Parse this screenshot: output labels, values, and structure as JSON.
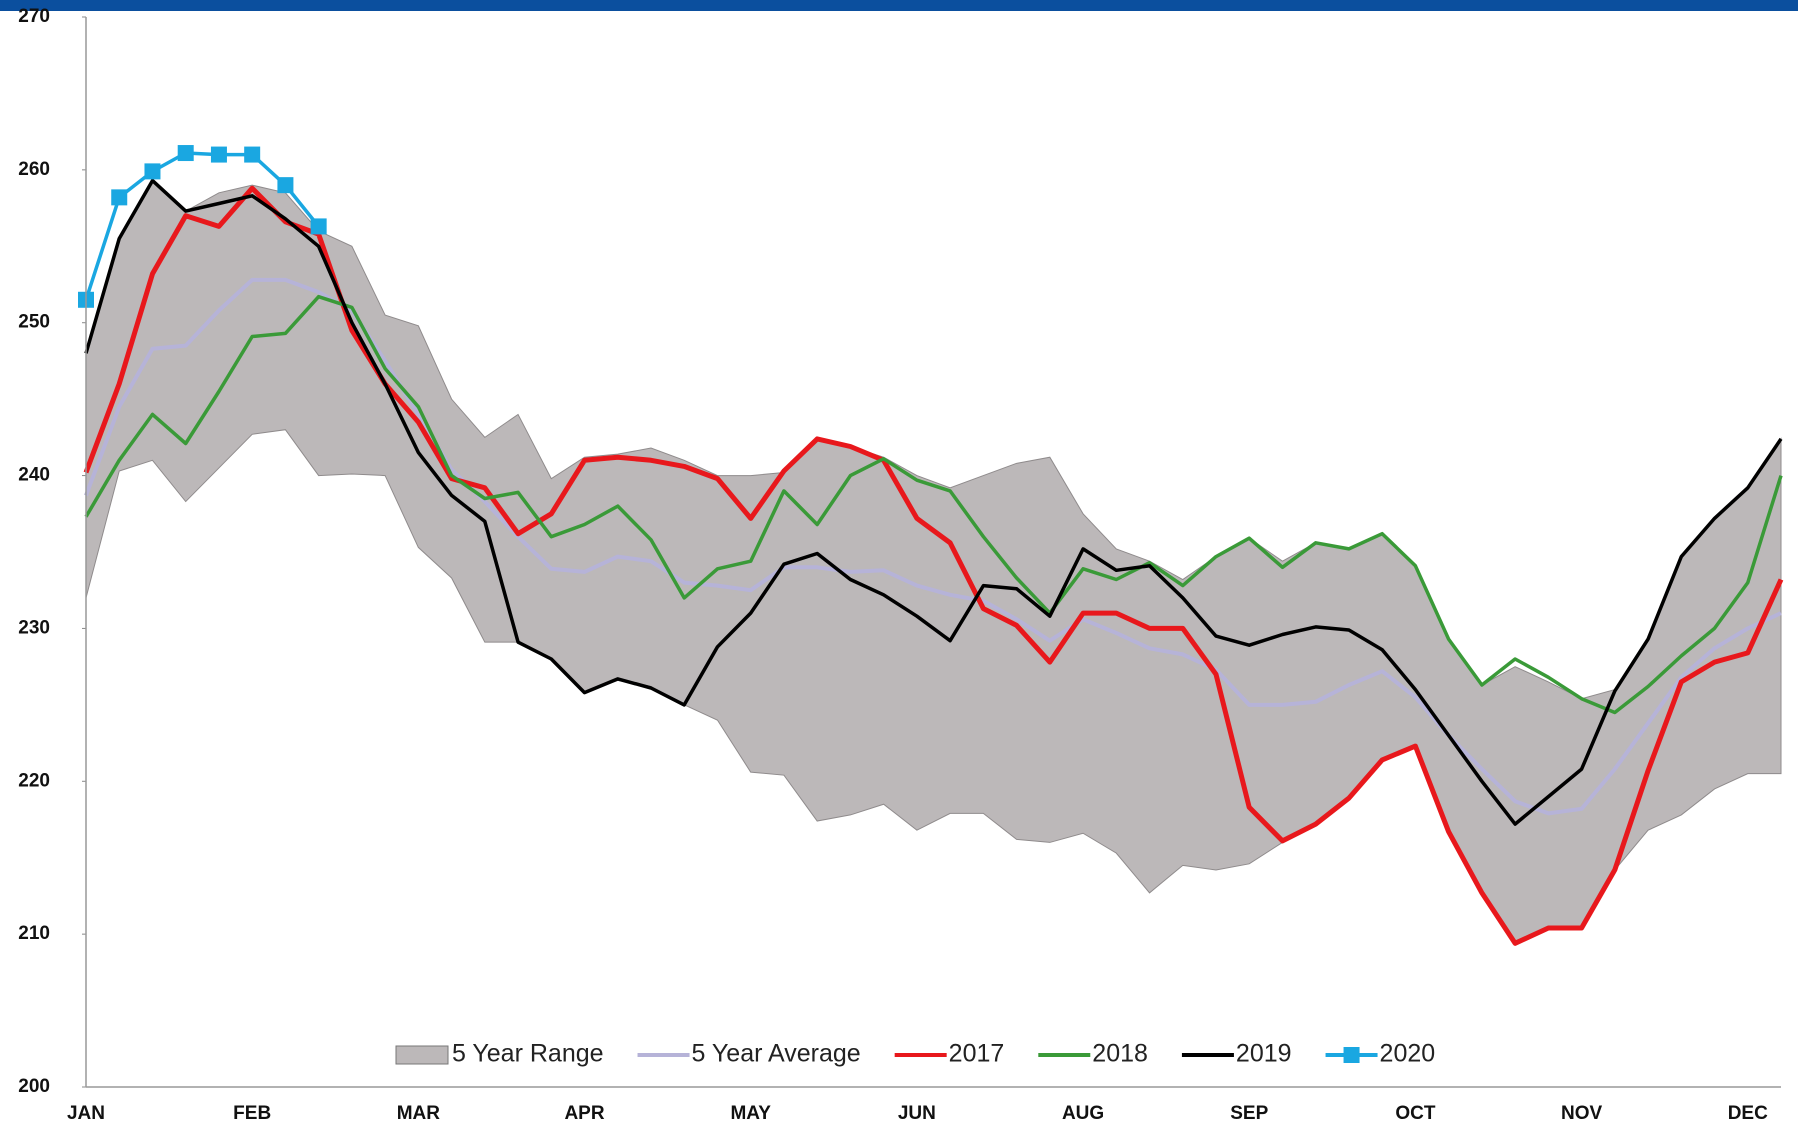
{
  "chart_data": {
    "type": "line",
    "legend": "bottom",
    "categories": [
      "JAN",
      null,
      null,
      null,
      null,
      "FEB",
      null,
      null,
      null,
      null,
      "MAR",
      null,
      null,
      null,
      null,
      "APR",
      null,
      null,
      null,
      null,
      "MAY",
      null,
      null,
      null,
      null,
      "JUN",
      null,
      null,
      null,
      null,
      "AUG",
      null,
      null,
      null,
      null,
      "SEP",
      null,
      null,
      null,
      null,
      "OCT",
      null,
      null,
      null,
      null,
      "NOV",
      null,
      null,
      null,
      null,
      "DEC",
      null
    ],
    "ylim": [
      200,
      270
    ],
    "yticks": [
      200,
      210,
      220,
      230,
      240,
      250,
      260,
      270
    ],
    "series": [
      {
        "name": "5 Year Range",
        "type": "range",
        "color": "#bcb8b9",
        "high": [
          248,
          255.5,
          259.3,
          257.3,
          258.5,
          259,
          258.5,
          256,
          255,
          250.5,
          249.8,
          245,
          242.5,
          244,
          239.8,
          241.2,
          241.4,
          241.8,
          241,
          240,
          240,
          240.2,
          242.4,
          241.9,
          241.2,
          240,
          239.2,
          240,
          240.8,
          241.2,
          237.5,
          235.2,
          234.4,
          233.2,
          234.7,
          235.9,
          234.4,
          235.6,
          235.2,
          236.2,
          234.1,
          229.3,
          226.3,
          227.5,
          226.5,
          225.4,
          226,
          229.3,
          234.7,
          237.2,
          239.2,
          242.4
        ],
        "low": [
          232,
          240.3,
          241,
          238.3,
          240.5,
          242.7,
          243,
          240,
          240.1,
          240,
          235.3,
          233.3,
          229.1,
          229.1,
          228,
          225.8,
          226.6,
          226.2,
          225,
          224,
          220.6,
          220.4,
          217.4,
          217.8,
          218.5,
          216.8,
          217.9,
          217.9,
          216.2,
          216,
          216.6,
          215.3,
          212.7,
          214.5,
          214.2,
          214.6,
          216,
          217.2,
          218.9,
          221.4,
          222.3,
          216.7,
          212.7,
          209.4,
          210.4,
          210.4,
          214.2,
          216.8,
          217.8,
          219.5,
          220.5,
          220.5
        ]
      },
      {
        "name": "5 Year Average",
        "color": "#b6b3d8",
        "values": [
          238.7,
          244.5,
          248.3,
          248.5,
          250.8,
          252.8,
          252.8,
          252,
          250.8,
          247.5,
          244,
          240.4,
          238.3,
          236,
          233.9,
          233.7,
          234.7,
          234.4,
          233,
          232.8,
          232.5,
          234,
          234,
          233.7,
          233.8,
          232.8,
          232.2,
          231.8,
          230.6,
          229.2,
          230.6,
          229.7,
          228.7,
          228.3,
          227.3,
          225,
          225,
          225.2,
          226.3,
          227.2,
          225.5,
          223,
          220.8,
          218.7,
          217.9,
          218.2,
          220.8,
          223.8,
          226.8,
          228.7,
          230,
          231
        ]
      },
      {
        "name": "2017",
        "color": "#e8181c",
        "values": [
          240.2,
          246,
          253.2,
          257,
          256.3,
          258.8,
          256.6,
          255.8,
          249.5,
          246,
          243.5,
          239.8,
          239.2,
          236.2,
          237.5,
          241,
          241.2,
          241,
          240.6,
          239.8,
          237.2,
          240.3,
          242.4,
          241.9,
          241,
          237.2,
          235.6,
          231.3,
          230.2,
          227.8,
          231,
          231,
          230,
          230,
          227,
          218.3,
          216.1,
          217.2,
          218.9,
          221.4,
          222.3,
          216.7,
          212.7,
          209.4,
          210.4,
          210.4,
          214.2,
          220.7,
          226.5,
          227.8,
          228.4,
          233.2
        ]
      },
      {
        "name": "2018",
        "color": "#3a9a38",
        "values": [
          237.3,
          241,
          244,
          242.1,
          245.5,
          249.1,
          249.3,
          251.7,
          251,
          247,
          244.5,
          240,
          238.5,
          238.9,
          236,
          236.8,
          238,
          235.8,
          232,
          233.9,
          234.4,
          239,
          236.8,
          240,
          241.1,
          239.7,
          239,
          236,
          233.3,
          231,
          233.9,
          233.2,
          234.3,
          232.8,
          234.7,
          235.9,
          234,
          235.6,
          235.2,
          236.2,
          234.1,
          229.3,
          226.3,
          228,
          226.8,
          225.4,
          224.5,
          226.2,
          228.2,
          230,
          233,
          240
        ]
      },
      {
        "name": "2019",
        "color": "#000000",
        "values": [
          248,
          255.5,
          259.3,
          257.3,
          257.8,
          258.3,
          256.8,
          255,
          250,
          246,
          241.5,
          238.7,
          237,
          229.1,
          228,
          225.8,
          226.7,
          226.1,
          225,
          228.8,
          231,
          234.2,
          234.9,
          233.2,
          232.2,
          230.8,
          229.2,
          232.8,
          232.6,
          230.8,
          235.2,
          233.8,
          234.1,
          232,
          229.5,
          228.9,
          229.6,
          230.1,
          229.9,
          228.6,
          226,
          223,
          220,
          217.2,
          219,
          220.8,
          225.9,
          229.3,
          234.7,
          237.2,
          239.2,
          242.4
        ]
      },
      {
        "name": "2020",
        "color": "#1aa7e1",
        "marker": "square",
        "values": [
          251.5,
          258.2,
          259.9,
          261.1,
          261,
          261,
          259,
          256.3,
          null,
          null,
          null,
          null,
          null,
          null,
          null,
          null,
          null,
          null,
          null,
          null,
          null,
          null,
          null,
          null,
          null,
          null,
          null,
          null,
          null,
          null,
          null,
          null,
          null,
          null,
          null,
          null,
          null,
          null,
          null,
          null,
          null,
          null,
          null,
          null,
          null,
          null,
          null,
          null,
          null,
          null,
          null,
          null
        ]
      }
    ]
  }
}
